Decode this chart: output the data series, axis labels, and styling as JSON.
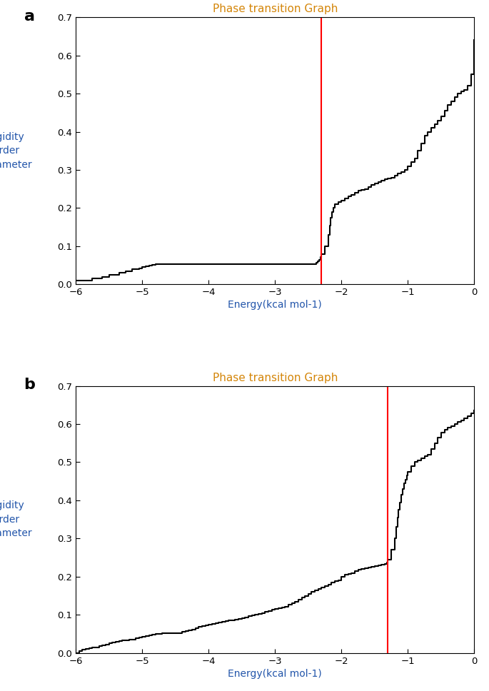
{
  "title": "Phase transition Graph",
  "title_color": "#d4860a",
  "xlabel": "Energy(kcal mol-1)",
  "ylabel_lines": [
    "Rigidity",
    "order",
    "parameter"
  ],
  "xlim": [
    -6,
    0
  ],
  "ylim": [
    0.0,
    0.7
  ],
  "yticks": [
    0.0,
    0.1,
    0.2,
    0.3,
    0.4,
    0.5,
    0.6,
    0.7
  ],
  "xticks": [
    -6,
    -5,
    -4,
    -3,
    -2,
    -1,
    0
  ],
  "panel_labels": [
    "a",
    "b"
  ],
  "red_line_a": -2.3,
  "red_line_b": -1.3,
  "line_color": "#000000",
  "red_color": "#ff0000",
  "panel_a_x": [
    -6.0,
    -5.9,
    -5.8,
    -5.75,
    -5.7,
    -5.6,
    -5.55,
    -5.5,
    -5.45,
    -5.4,
    -5.35,
    -5.3,
    -5.25,
    -5.2,
    -5.15,
    -5.1,
    -5.05,
    -5.0,
    -4.95,
    -4.9,
    -4.85,
    -4.8,
    -4.75,
    -4.7,
    -4.65,
    -4.6,
    -4.55,
    -4.5,
    -4.45,
    -4.4,
    -4.35,
    -4.3,
    -4.25,
    -4.2,
    -4.15,
    -4.1,
    -4.05,
    -4.0,
    -3.95,
    -3.9,
    -3.85,
    -3.8,
    -3.75,
    -3.7,
    -3.65,
    -3.6,
    -3.55,
    -3.5,
    -3.45,
    -3.4,
    -3.35,
    -3.3,
    -3.25,
    -3.2,
    -3.15,
    -3.1,
    -3.05,
    -3.0,
    -2.95,
    -2.9,
    -2.85,
    -2.8,
    -2.75,
    -2.7,
    -2.65,
    -2.6,
    -2.55,
    -2.5,
    -2.45,
    -2.4,
    -2.38,
    -2.36,
    -2.34,
    -2.32,
    -2.3,
    -2.25,
    -2.2,
    -2.18,
    -2.16,
    -2.14,
    -2.12,
    -2.1,
    -2.05,
    -2.0,
    -1.95,
    -1.9,
    -1.85,
    -1.8,
    -1.75,
    -1.7,
    -1.65,
    -1.6,
    -1.55,
    -1.5,
    -1.45,
    -1.4,
    -1.35,
    -1.3,
    -1.25,
    -1.2,
    -1.15,
    -1.1,
    -1.05,
    -1.0,
    -0.95,
    -0.9,
    -0.85,
    -0.8,
    -0.75,
    -0.7,
    -0.65,
    -0.6,
    -0.55,
    -0.5,
    -0.45,
    -0.4,
    -0.35,
    -0.3,
    -0.25,
    -0.2,
    -0.15,
    -0.1,
    -0.05,
    0.0
  ],
  "panel_a_y": [
    0.01,
    0.01,
    0.01,
    0.015,
    0.015,
    0.02,
    0.02,
    0.025,
    0.025,
    0.025,
    0.03,
    0.03,
    0.035,
    0.035,
    0.04,
    0.04,
    0.042,
    0.045,
    0.048,
    0.05,
    0.052,
    0.053,
    0.053,
    0.053,
    0.053,
    0.053,
    0.053,
    0.053,
    0.053,
    0.053,
    0.053,
    0.053,
    0.053,
    0.053,
    0.053,
    0.053,
    0.053,
    0.053,
    0.053,
    0.053,
    0.053,
    0.053,
    0.053,
    0.053,
    0.053,
    0.053,
    0.053,
    0.053,
    0.053,
    0.053,
    0.053,
    0.053,
    0.053,
    0.053,
    0.053,
    0.053,
    0.053,
    0.053,
    0.053,
    0.053,
    0.053,
    0.053,
    0.053,
    0.053,
    0.053,
    0.053,
    0.053,
    0.053,
    0.053,
    0.053,
    0.056,
    0.06,
    0.065,
    0.072,
    0.08,
    0.1,
    0.13,
    0.155,
    0.175,
    0.19,
    0.2,
    0.21,
    0.215,
    0.22,
    0.225,
    0.23,
    0.235,
    0.24,
    0.245,
    0.248,
    0.25,
    0.255,
    0.26,
    0.265,
    0.268,
    0.272,
    0.275,
    0.278,
    0.28,
    0.285,
    0.29,
    0.295,
    0.3,
    0.31,
    0.32,
    0.33,
    0.35,
    0.37,
    0.39,
    0.4,
    0.41,
    0.42,
    0.43,
    0.44,
    0.455,
    0.47,
    0.48,
    0.49,
    0.5,
    0.505,
    0.51,
    0.52,
    0.55,
    0.64
  ],
  "panel_b_x": [
    -6.0,
    -5.95,
    -5.9,
    -5.85,
    -5.8,
    -5.75,
    -5.7,
    -5.65,
    -5.6,
    -5.55,
    -5.5,
    -5.45,
    -5.4,
    -5.35,
    -5.3,
    -5.25,
    -5.2,
    -5.15,
    -5.1,
    -5.05,
    -5.0,
    -4.95,
    -4.9,
    -4.85,
    -4.8,
    -4.75,
    -4.7,
    -4.65,
    -4.6,
    -4.55,
    -4.5,
    -4.45,
    -4.4,
    -4.35,
    -4.3,
    -4.25,
    -4.2,
    -4.15,
    -4.1,
    -4.05,
    -4.0,
    -3.95,
    -3.9,
    -3.85,
    -3.8,
    -3.75,
    -3.7,
    -3.65,
    -3.6,
    -3.55,
    -3.5,
    -3.45,
    -3.4,
    -3.35,
    -3.3,
    -3.25,
    -3.2,
    -3.15,
    -3.1,
    -3.05,
    -3.0,
    -2.95,
    -2.9,
    -2.85,
    -2.8,
    -2.75,
    -2.7,
    -2.65,
    -2.6,
    -2.55,
    -2.5,
    -2.45,
    -2.4,
    -2.35,
    -2.3,
    -2.25,
    -2.2,
    -2.15,
    -2.1,
    -2.05,
    -2.0,
    -1.95,
    -1.9,
    -1.85,
    -1.8,
    -1.75,
    -1.7,
    -1.65,
    -1.6,
    -1.55,
    -1.5,
    -1.45,
    -1.4,
    -1.35,
    -1.32,
    -1.3,
    -1.25,
    -1.2,
    -1.18,
    -1.16,
    -1.14,
    -1.12,
    -1.1,
    -1.08,
    -1.06,
    -1.04,
    -1.02,
    -1.0,
    -0.95,
    -0.9,
    -0.85,
    -0.8,
    -0.75,
    -0.7,
    -0.65,
    -0.6,
    -0.55,
    -0.5,
    -0.45,
    -0.4,
    -0.35,
    -0.3,
    -0.25,
    -0.2,
    -0.15,
    -0.1,
    -0.05,
    0.0
  ],
  "panel_b_y": [
    0.0,
    0.005,
    0.008,
    0.01,
    0.012,
    0.015,
    0.015,
    0.018,
    0.02,
    0.022,
    0.025,
    0.028,
    0.03,
    0.032,
    0.033,
    0.034,
    0.035,
    0.036,
    0.038,
    0.04,
    0.042,
    0.044,
    0.046,
    0.048,
    0.05,
    0.05,
    0.052,
    0.052,
    0.052,
    0.052,
    0.052,
    0.052,
    0.055,
    0.058,
    0.06,
    0.062,
    0.065,
    0.068,
    0.07,
    0.073,
    0.075,
    0.076,
    0.078,
    0.08,
    0.082,
    0.083,
    0.085,
    0.086,
    0.088,
    0.09,
    0.092,
    0.094,
    0.096,
    0.098,
    0.1,
    0.102,
    0.105,
    0.108,
    0.11,
    0.113,
    0.115,
    0.118,
    0.12,
    0.122,
    0.126,
    0.13,
    0.135,
    0.14,
    0.145,
    0.15,
    0.155,
    0.16,
    0.165,
    0.168,
    0.172,
    0.175,
    0.18,
    0.185,
    0.188,
    0.19,
    0.2,
    0.205,
    0.208,
    0.21,
    0.215,
    0.218,
    0.22,
    0.222,
    0.224,
    0.226,
    0.228,
    0.23,
    0.232,
    0.234,
    0.238,
    0.245,
    0.27,
    0.3,
    0.33,
    0.355,
    0.375,
    0.395,
    0.415,
    0.43,
    0.445,
    0.455,
    0.465,
    0.475,
    0.49,
    0.5,
    0.505,
    0.51,
    0.515,
    0.52,
    0.535,
    0.55,
    0.565,
    0.578,
    0.585,
    0.59,
    0.595,
    0.6,
    0.605,
    0.61,
    0.615,
    0.62,
    0.628,
    0.635
  ]
}
